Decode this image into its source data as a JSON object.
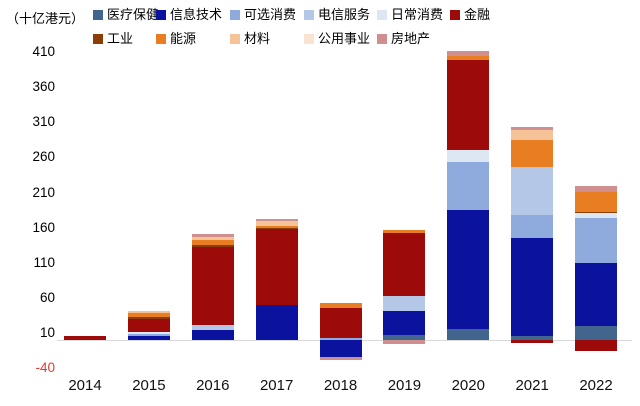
{
  "chart_data": {
    "type": "bar",
    "variant": "stacked-column",
    "title": "（十亿港元）",
    "categories": [
      "2014",
      "2015",
      "2016",
      "2017",
      "2018",
      "2019",
      "2020",
      "2021",
      "2022"
    ],
    "y_ticks": [
      410,
      360,
      310,
      260,
      210,
      160,
      110,
      60,
      10,
      -40
    ],
    "ylim": [
      -40,
      410
    ],
    "grid": false,
    "legend_position": "top",
    "axis_line_color": "#d9d9d9",
    "tick_label_color": "#000000",
    "negative_tick_color": "#e8392e",
    "series": [
      {
        "name": "医疗保健",
        "color": "#41658D",
        "values": [
          0,
          0,
          0,
          0,
          0,
          7,
          15,
          5,
          20
        ]
      },
      {
        "name": "信息技术",
        "color": "#0A129E",
        "values": [
          0,
          6,
          14,
          50,
          -24,
          35,
          170,
          140,
          90
        ]
      },
      {
        "name": "可选消费",
        "color": "#8FAADC",
        "values": [
          0,
          3,
          0,
          0,
          3,
          0,
          68,
          33,
          64
        ]
      },
      {
        "name": "电信服务",
        "color": "#B4C7E7",
        "values": [
          0,
          0,
          8,
          0,
          0,
          20,
          0,
          69,
          0
        ]
      },
      {
        "name": "日常消费",
        "color": "#DDE7F4",
        "values": [
          0,
          3,
          0,
          0,
          0,
          0,
          18,
          0,
          7
        ]
      },
      {
        "name": "金融",
        "color": "#9D0A0A",
        "values": [
          5,
          18,
          110,
          108,
          42,
          90,
          128,
          -4,
          -15
        ]
      },
      {
        "name": "工业",
        "color": "#8C3D08",
        "values": [
          0,
          3,
          3,
          2,
          0,
          0,
          0,
          0,
          2
        ]
      },
      {
        "name": "能源",
        "color": "#E87D22",
        "values": [
          0,
          6,
          7,
          2,
          8,
          4,
          6,
          38,
          28
        ]
      },
      {
        "name": "材料",
        "color": "#F6C399",
        "values": [
          0,
          3,
          5,
          7,
          0,
          0,
          0,
          14,
          0
        ]
      },
      {
        "name": "公用事业",
        "color": "#FAE3D0",
        "values": [
          0,
          0,
          0,
          0,
          0,
          0,
          0,
          0,
          0
        ]
      },
      {
        "name": "房地产",
        "color": "#D08F8F",
        "values": [
          0,
          0,
          4,
          3,
          -4,
          -5,
          6,
          5,
          9
        ]
      }
    ]
  }
}
